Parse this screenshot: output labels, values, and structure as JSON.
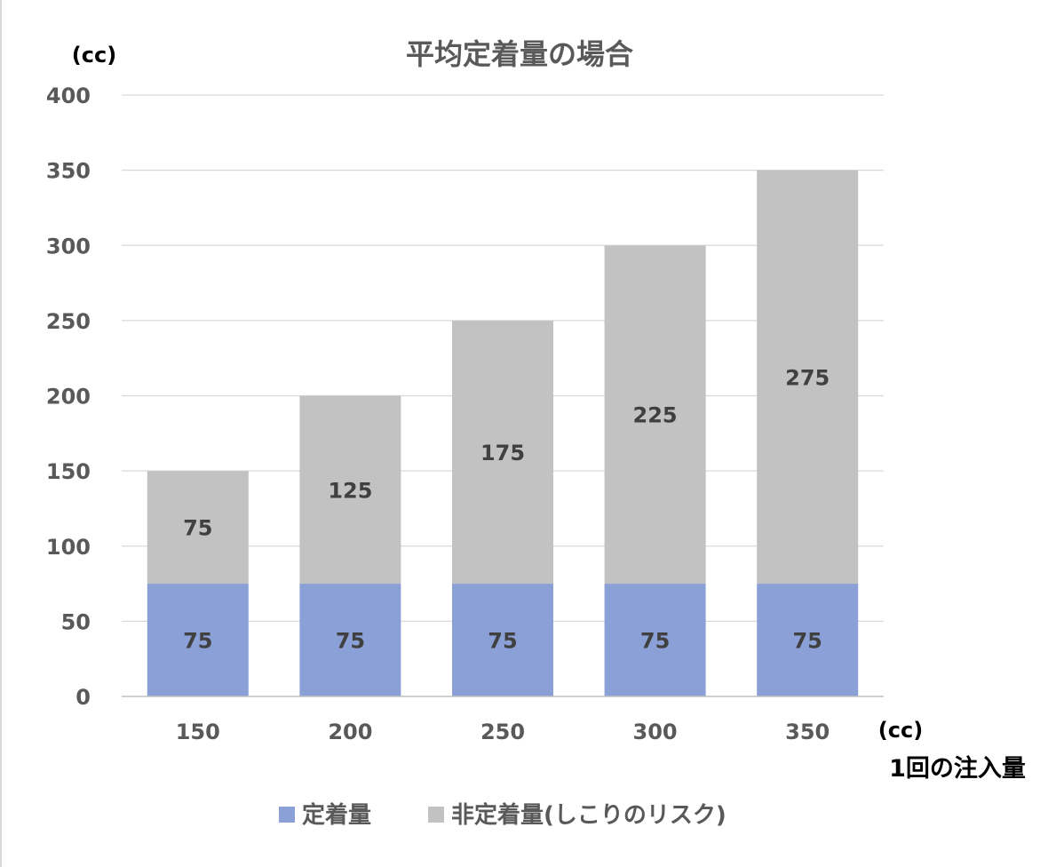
{
  "chart_data": {
    "type": "bar",
    "stacked": true,
    "title": "平均定着量の場合",
    "ylabel": "(cc)",
    "xlabel_unit": "(cc)",
    "xlabel": "1回の注入量",
    "categories": [
      "150",
      "200",
      "250",
      "300",
      "350"
    ],
    "ylim": [
      0,
      400
    ],
    "yticks": [
      0,
      50,
      100,
      150,
      200,
      250,
      300,
      350,
      400
    ],
    "grid": true,
    "legend_position": "bottom",
    "series": [
      {
        "name": "定着量",
        "values": [
          75,
          75,
          75,
          75,
          75
        ],
        "color": "#8aa0d6"
      },
      {
        "name": "非定着量(しこりのリスク)",
        "values": [
          75,
          125,
          175,
          225,
          275
        ],
        "color": "#c2c2c2"
      }
    ]
  }
}
